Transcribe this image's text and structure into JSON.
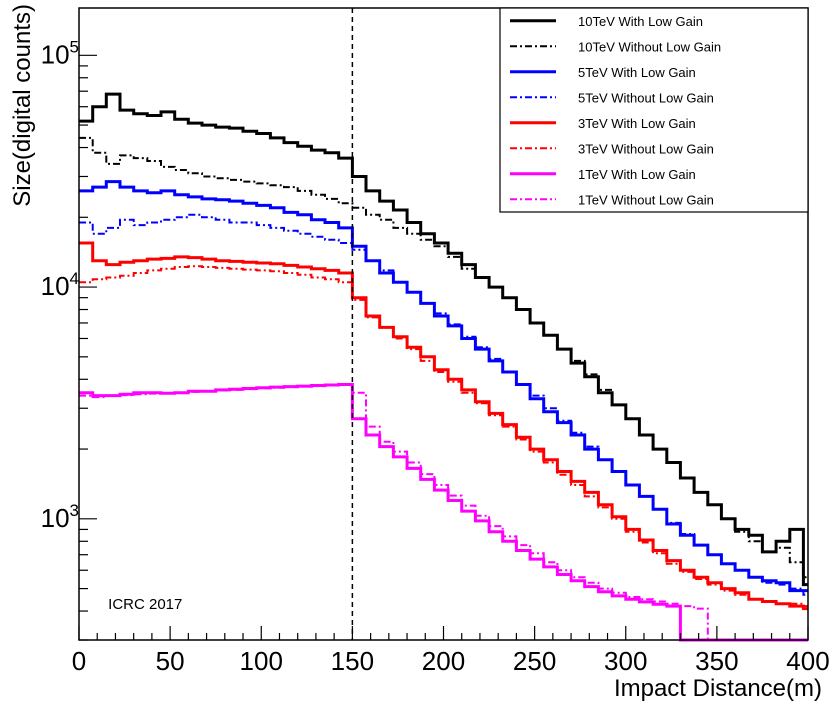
{
  "chart_data": {
    "type": "line",
    "title": "",
    "xlabel": "Impact Distance(m)",
    "ylabel": "Size(digital counts)",
    "xlim": [
      0,
      400
    ],
    "ylim": [
      300,
      160000
    ],
    "yscale": "log",
    "grid": false,
    "legend_position": "top-right",
    "x_ticks": [
      "0",
      "50",
      "100",
      "150",
      "200",
      "250",
      "300",
      "350",
      "400"
    ],
    "y_ticks": [
      {
        "value": 1000,
        "mantissa": "10",
        "exponent": "3"
      },
      {
        "value": 10000,
        "mantissa": "10",
        "exponent": "4"
      },
      {
        "value": 100000,
        "mantissa": "10",
        "exponent": "5"
      }
    ],
    "annotations": [
      {
        "type": "vline",
        "x": 150,
        "style": "dashed"
      },
      {
        "type": "text",
        "text": "ICRC 2017",
        "x": 16,
        "y": 430
      }
    ],
    "x_edges": [
      0,
      7.5,
      15,
      22.5,
      30,
      37.5,
      45,
      52.5,
      60,
      67.5,
      75,
      82.5,
      90,
      97.5,
      105,
      112.5,
      120,
      127.5,
      135,
      142.5,
      150,
      157.5,
      165,
      172.5,
      180,
      187.5,
      195,
      202.5,
      210,
      217.5,
      225,
      232.5,
      240,
      247.5,
      255,
      262.5,
      270,
      277.5,
      285,
      292.5,
      300,
      307.5,
      315,
      322.5,
      330,
      337.5,
      345,
      352.5,
      360,
      367.5,
      375,
      382.5,
      390,
      397.5,
      400
    ],
    "series": [
      {
        "name": "10TeV With Low Gain",
        "color": "#000000",
        "dash": "solid",
        "values": [
          52000,
          60000,
          68000,
          58000,
          56000,
          55000,
          57000,
          53000,
          51000,
          50000,
          49000,
          48500,
          47000,
          46000,
          44000,
          42000,
          40500,
          39000,
          38000,
          36000,
          30000,
          26000,
          23500,
          21500,
          19000,
          17000,
          15500,
          14000,
          12500,
          11000,
          10000,
          9000,
          8000,
          7000,
          6200,
          5400,
          4700,
          4100,
          3500,
          3100,
          2700,
          2300,
          2000,
          1750,
          1500,
          1300,
          1150,
          1000,
          900,
          850,
          720,
          800,
          900,
          520
        ]
      },
      {
        "name": "10TeV Without Low Gain",
        "color": "#000000",
        "dash": "dashdot",
        "values": [
          44000,
          38000,
          34000,
          37000,
          36000,
          35000,
          33000,
          32000,
          31000,
          30000,
          29500,
          29000,
          28500,
          28000,
          27500,
          27000,
          26000,
          25000,
          24000,
          23000,
          22000,
          20500,
          19500,
          18000,
          17000,
          16000,
          15000,
          13500,
          12000,
          11000,
          10000,
          9000,
          8000,
          7000,
          6200,
          5400,
          4800,
          4200,
          3600,
          3100,
          2700,
          2300,
          2000,
          1750,
          1500,
          1300,
          1150,
          1000,
          880,
          800,
          720,
          750,
          650,
          560
        ]
      },
      {
        "name": "5TeV With Low Gain",
        "color": "#0000ff",
        "dash": "solid",
        "values": [
          26000,
          27000,
          28500,
          27000,
          26000,
          25500,
          26000,
          25000,
          24500,
          24000,
          23800,
          23500,
          23000,
          22500,
          22000,
          21000,
          20500,
          19500,
          19000,
          18000,
          15000,
          13000,
          11500,
          10500,
          9500,
          8500,
          7500,
          6800,
          6000,
          5400,
          4800,
          4300,
          3800,
          3300,
          2900,
          2600,
          2300,
          2000,
          1800,
          1600,
          1400,
          1250,
          1100,
          950,
          850,
          770,
          700,
          640,
          600,
          560,
          540,
          530,
          490,
          490
        ]
      },
      {
        "name": "5TeV Without Low Gain",
        "color": "#0000ff",
        "dash": "dashdot",
        "values": [
          19000,
          17000,
          18000,
          19500,
          18500,
          19000,
          19500,
          20000,
          20500,
          20000,
          19500,
          19000,
          19000,
          18500,
          18000,
          17500,
          17000,
          16500,
          16000,
          15500,
          14500,
          13000,
          11800,
          10500,
          9500,
          8500,
          7700,
          6900,
          6100,
          5500,
          4900,
          4300,
          3800,
          3400,
          3000,
          2650,
          2350,
          2050,
          1800,
          1600,
          1400,
          1250,
          1100,
          960,
          860,
          770,
          700,
          640,
          600,
          560,
          530,
          520,
          500,
          470
        ]
      },
      {
        "name": "3TeV With Low Gain",
        "color": "#ff0000",
        "dash": "solid",
        "values": [
          15500,
          13000,
          12500,
          12800,
          13000,
          13200,
          13300,
          13500,
          13400,
          13200,
          13000,
          12900,
          12800,
          12700,
          12600,
          12400,
          12200,
          12000,
          11800,
          11500,
          9000,
          7500,
          6700,
          6100,
          5500,
          5000,
          4400,
          4000,
          3600,
          3200,
          2850,
          2550,
          2250,
          2000,
          1800,
          1600,
          1450,
          1300,
          1150,
          1020,
          900,
          810,
          730,
          660,
          600,
          560,
          530,
          500,
          480,
          450,
          440,
          430,
          420,
          410
        ]
      },
      {
        "name": "3TeV Without Low Gain",
        "color": "#ff0000",
        "dash": "dashdot",
        "values": [
          10500,
          10800,
          11000,
          11200,
          11500,
          11800,
          12000,
          12200,
          12300,
          12200,
          12100,
          12000,
          11900,
          11800,
          11700,
          11500,
          11300,
          11000,
          10800,
          10500,
          8800,
          7400,
          6700,
          6000,
          5400,
          4800,
          4300,
          3900,
          3500,
          3150,
          2800,
          2500,
          2200,
          1950,
          1750,
          1550,
          1400,
          1250,
          1120,
          1000,
          880,
          790,
          710,
          640,
          590,
          550,
          520,
          490,
          470,
          450,
          440,
          430,
          430,
          420
        ]
      },
      {
        "name": "1TeV With Low Gain",
        "color": "#ff00ff",
        "dash": "solid",
        "values": [
          3500,
          3400,
          3400,
          3450,
          3500,
          3500,
          3480,
          3500,
          3550,
          3550,
          3600,
          3620,
          3650,
          3680,
          3700,
          3720,
          3740,
          3760,
          3780,
          3800,
          2700,
          2300,
          2050,
          1850,
          1650,
          1480,
          1330,
          1200,
          1080,
          980,
          880,
          800,
          730,
          670,
          620,
          575,
          540,
          510,
          485,
          465,
          450,
          438,
          428,
          420,
          300,
          300,
          300,
          300,
          300,
          300,
          300,
          300,
          300,
          300
        ]
      },
      {
        "name": "1TeV Without Low Gain",
        "color": "#ff00ff",
        "dash": "dashdot",
        "values": [
          3400,
          3350,
          3400,
          3420,
          3450,
          3470,
          3480,
          3500,
          3530,
          3550,
          3580,
          3600,
          3630,
          3660,
          3680,
          3700,
          3720,
          3740,
          3760,
          3780,
          3500,
          2500,
          2150,
          1950,
          1750,
          1560,
          1400,
          1260,
          1140,
          1030,
          930,
          840,
          770,
          710,
          650,
          600,
          560,
          530,
          500,
          480,
          460,
          450,
          440,
          430,
          420,
          410,
          300,
          300,
          300,
          300,
          300,
          300,
          300,
          300
        ]
      }
    ],
    "texts": {
      "annotation": "ICRC 2017"
    }
  }
}
